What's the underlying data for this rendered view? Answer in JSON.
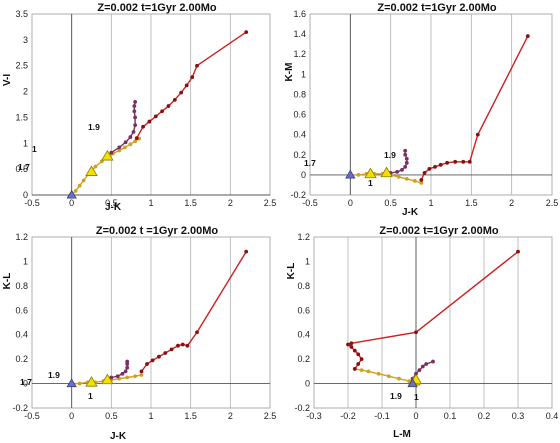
{
  "chart_data": [
    {
      "type": "line",
      "title": "Z=0.002  t=1Gyr  2.00Mo",
      "xlabel": "J-K",
      "ylabel": "V-I",
      "xlim": [
        -0.5,
        2.5
      ],
      "ylim": [
        0,
        3.5
      ],
      "xticks": [
        "-0.5",
        "0",
        "0.5",
        "1",
        "1.5",
        "2",
        "2.5"
      ],
      "yticks": [
        "0",
        "0.5",
        "1",
        "1.5",
        "2",
        "2.5",
        "3",
        "3.5"
      ],
      "grid": "vertical",
      "series": [
        {
          "color": "#d0a020",
          "x": [
            0,
            0.05,
            0.1,
            0.15,
            0.22,
            0.3,
            0.38,
            0.45,
            0.52,
            0.6,
            0.67,
            0.74,
            0.8,
            0.85
          ],
          "y": [
            0,
            0.08,
            0.18,
            0.28,
            0.42,
            0.55,
            0.65,
            0.74,
            0.8,
            0.86,
            0.92,
            0.98,
            1.04,
            1.09
          ]
        },
        {
          "color": "#7a3060",
          "x": [
            0.5,
            0.6,
            0.68,
            0.74,
            0.78,
            0.8,
            0.8,
            0.79,
            0.79,
            0.8
          ],
          "y": [
            0.82,
            0.92,
            1.02,
            1.12,
            1.22,
            1.35,
            1.5,
            1.62,
            1.72,
            1.8
          ]
        },
        {
          "color": "#d02020",
          "x": [
            0.82,
            0.9,
            0.98,
            1.06,
            1.14,
            1.22,
            1.3,
            1.38,
            1.45,
            1.52,
            1.58,
            2.2
          ],
          "y": [
            1.1,
            1.32,
            1.42,
            1.52,
            1.62,
            1.72,
            1.84,
            1.98,
            2.12,
            2.28,
            2.5,
            3.15
          ]
        }
      ],
      "markers": {
        "triangles_yellow": {
          "x": [
            0.25,
            0.45
          ],
          "y": [
            0.45,
            0.75
          ]
        },
        "triangle_blue": {
          "x": [
            0
          ],
          "y": [
            0
          ]
        }
      },
      "annotations": [
        "1.7",
        "1",
        "1.9"
      ]
    },
    {
      "type": "line",
      "title": "Z=0.002  t=1Gyr  2.00Mo",
      "xlabel": "J-K",
      "ylabel": "K-M",
      "xlim": [
        -0.5,
        2.5
      ],
      "ylim": [
        -0.2,
        1.6
      ],
      "xticks": [
        "-0.5",
        "0",
        "0.5",
        "1",
        "1.5",
        "2",
        "2.5"
      ],
      "yticks": [
        "-0.2",
        "0",
        "0.2",
        "0.4",
        "0.6",
        "0.8",
        "1",
        "1.2",
        "1.4",
        "1.6"
      ],
      "grid": "vertical",
      "series": [
        {
          "color": "#d0a020",
          "x": [
            0,
            0.1,
            0.2,
            0.3,
            0.4,
            0.5,
            0.6,
            0.7,
            0.8,
            0.88
          ],
          "y": [
            0,
            0.0,
            0.01,
            0.01,
            0.01,
            0.0,
            -0.02,
            -0.04,
            -0.06,
            -0.08
          ]
        },
        {
          "color": "#7a3060",
          "x": [
            0.5,
            0.58,
            0.64,
            0.68,
            0.7,
            0.7,
            0.68,
            0.68
          ],
          "y": [
            0.02,
            0.03,
            0.05,
            0.08,
            0.12,
            0.16,
            0.2,
            0.24
          ]
        },
        {
          "color": "#d02020",
          "x": [
            0.88,
            0.92,
            0.98,
            1.05,
            1.12,
            1.2,
            1.3,
            1.4,
            1.48,
            1.58,
            2.2
          ],
          "y": [
            -0.05,
            0.02,
            0.06,
            0.08,
            0.1,
            0.12,
            0.13,
            0.13,
            0.13,
            0.4,
            1.38
          ]
        }
      ],
      "markers": {
        "triangles_yellow": {
          "x": [
            0.25,
            0.45
          ],
          "y": [
            0.01,
            0.02
          ]
        },
        "triangle_blue": {
          "x": [
            0
          ],
          "y": [
            0
          ]
        }
      },
      "annotations": [
        "1.7",
        "1.9",
        "1"
      ]
    },
    {
      "type": "line",
      "title": "Z=0.002  t =1Gyr  2.00Mo",
      "xlabel": "J-K",
      "ylabel": "K-L",
      "xlim": [
        -0.5,
        2.5
      ],
      "ylim": [
        -0.2,
        1.2
      ],
      "xticks": [
        "-0.5",
        "0",
        "0.5",
        "1",
        "1.5",
        "2",
        "2.5"
      ],
      "yticks": [
        "-0.2",
        "0",
        "0.2",
        "0.4",
        "0.6",
        "0.8",
        "1",
        "1.2"
      ],
      "grid": "vertical",
      "series": [
        {
          "color": "#d0a020",
          "x": [
            0,
            0.1,
            0.2,
            0.3,
            0.4,
            0.5,
            0.6,
            0.7,
            0.8,
            0.88
          ],
          "y": [
            0,
            0.0,
            0.01,
            0.01,
            0.02,
            0.03,
            0.04,
            0.05,
            0.06,
            0.07
          ]
        },
        {
          "color": "#7a3060",
          "x": [
            0.5,
            0.58,
            0.64,
            0.68,
            0.7,
            0.7,
            0.7
          ],
          "y": [
            0.05,
            0.06,
            0.08,
            0.1,
            0.13,
            0.16,
            0.18
          ]
        },
        {
          "color": "#d02020",
          "x": [
            0.88,
            0.95,
            1.02,
            1.1,
            1.18,
            1.26,
            1.34,
            1.4,
            1.46,
            1.58,
            2.2
          ],
          "y": [
            0.1,
            0.16,
            0.19,
            0.22,
            0.25,
            0.28,
            0.31,
            0.32,
            0.31,
            0.42,
            1.08
          ]
        }
      ],
      "markers": {
        "triangles_yellow": {
          "x": [
            0.25,
            0.45
          ],
          "y": [
            0.01,
            0.03
          ]
        },
        "triangle_blue": {
          "x": [
            0
          ],
          "y": [
            0
          ]
        }
      },
      "annotations": [
        "1.7",
        "1.9",
        "1"
      ]
    },
    {
      "type": "line",
      "title": "Z=0.002  t=1Gyr  2.00Mo",
      "xlabel": "L-M",
      "ylabel": "K-L",
      "xlim": [
        -0.3,
        0.4
      ],
      "ylim": [
        -0.2,
        1.2
      ],
      "xticks": [
        "-0.3",
        "-0.2",
        "-0.1",
        "0",
        "0.1",
        "0.2",
        "0.3",
        "0.4"
      ],
      "yticks": [
        "-0.2",
        "0",
        "0.2",
        "0.4",
        "0.6",
        "0.8",
        "1",
        "1.2"
      ],
      "grid": "vertical",
      "series": [
        {
          "color": "#d0a020",
          "x": [
            0,
            -0.02,
            -0.05,
            -0.08,
            -0.11,
            -0.14,
            -0.16,
            -0.18
          ],
          "y": [
            0.0,
            0.02,
            0.04,
            0.06,
            0.08,
            0.1,
            0.11,
            0.12
          ]
        },
        {
          "color": "#7a3060",
          "x": [
            -0.01,
            0.0,
            0.01,
            0.02,
            0.03,
            0.05
          ],
          "y": [
            0.04,
            0.08,
            0.11,
            0.14,
            0.16,
            0.18
          ]
        },
        {
          "color": "#d02020",
          "x": [
            -0.18,
            -0.17,
            -0.16,
            -0.17,
            -0.18,
            -0.19,
            -0.2,
            -0.19,
            0.0,
            0.3
          ],
          "y": [
            0.12,
            0.16,
            0.2,
            0.24,
            0.27,
            0.3,
            0.32,
            0.33,
            0.42,
            1.08
          ]
        }
      ],
      "markers": {
        "triangles_yellow": {
          "x": [
            -0.005,
            0.0
          ],
          "y": [
            0.02,
            0.03
          ]
        },
        "triangle_blue": {
          "x": [
            -0.01
          ],
          "y": [
            0
          ]
        }
      },
      "annotations": [
        "1.9",
        "1"
      ]
    }
  ]
}
